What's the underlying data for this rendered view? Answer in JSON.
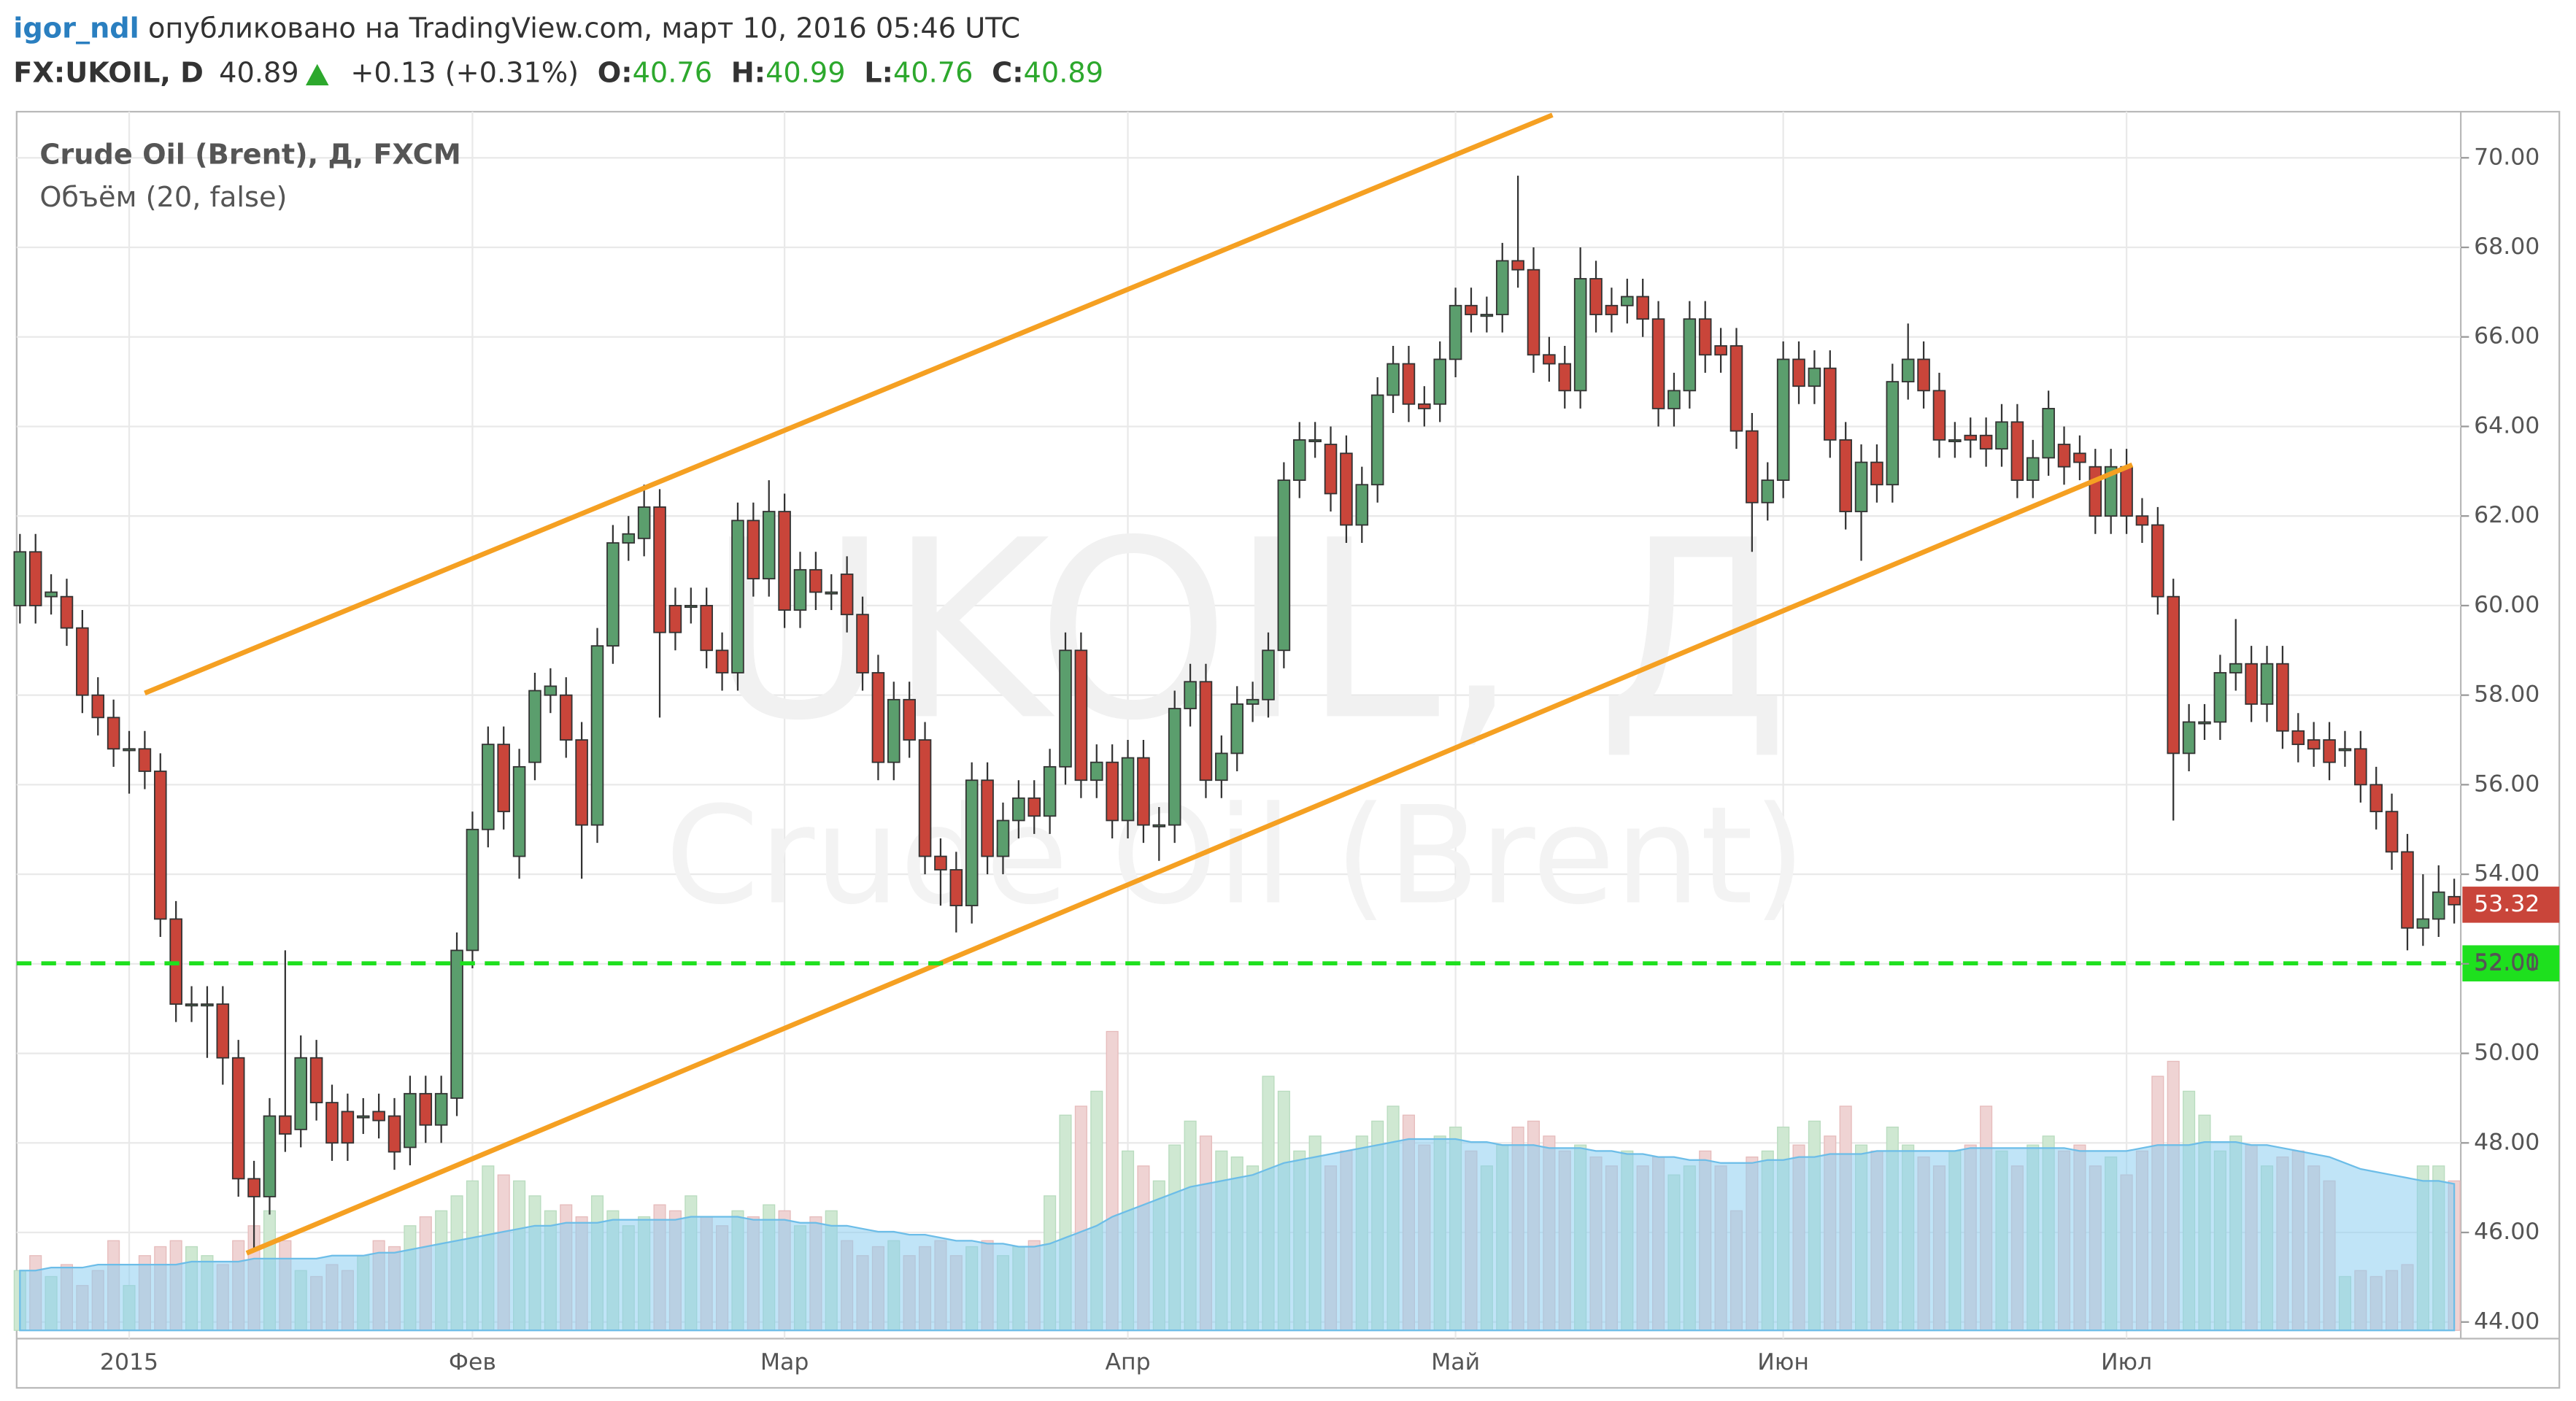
{
  "header": {
    "author": "igor_ndl",
    "published": "опубликовано на TradingView.com, март 10, 2016 05:46 UTC",
    "symbol": "FX:UKOIL, D",
    "last": 40.89,
    "change": "+0.13 (+0.31%)",
    "ohlc": [
      {
        "label": "O:",
        "value": 40.76
      },
      {
        "label": "H:",
        "value": 40.99
      },
      {
        "label": "L:",
        "value": 40.76
      },
      {
        "label": "C:",
        "value": 40.89
      }
    ]
  },
  "chart_data": {
    "type": "candlestick",
    "title": "Crude Oil (Brent), Д, FXCM",
    "indicator": "Объём (20, false)",
    "watermark": "UKOIL, Д",
    "watermark_sub": "Crude Oil (Brent)",
    "up_color": "#5b9e6d",
    "down_color": "#c9453a",
    "volume_up_color": "#cfe8d2",
    "volume_down_color": "#efd3d3",
    "volume_ma_color": "#8ccdf0",
    "categories": [
      null,
      null,
      null,
      null,
      null,
      null,
      null,
      "2015",
      null,
      null,
      null,
      null,
      null,
      null,
      null,
      null,
      null,
      null,
      null,
      null,
      null,
      null,
      null,
      null,
      null,
      null,
      null,
      null,
      null,
      "Фев",
      null,
      null,
      null,
      null,
      null,
      null,
      null,
      null,
      null,
      null,
      null,
      null,
      null,
      null,
      null,
      null,
      null,
      null,
      null,
      "Мар",
      null,
      null,
      null,
      null,
      null,
      null,
      null,
      null,
      null,
      null,
      null,
      null,
      null,
      null,
      null,
      null,
      null,
      null,
      null,
      null,
      null,
      "Апр",
      null,
      null,
      null,
      null,
      null,
      null,
      null,
      null,
      null,
      null,
      null,
      null,
      null,
      null,
      null,
      null,
      null,
      null,
      null,
      null,
      "Май",
      null,
      null,
      null,
      null,
      null,
      null,
      null,
      null,
      null,
      null,
      null,
      null,
      null,
      null,
      null,
      null,
      null,
      null,
      null,
      null,
      "Июн",
      null,
      null,
      null,
      null,
      null,
      null,
      null,
      null,
      null,
      null,
      null,
      null,
      null,
      null,
      null,
      null,
      null,
      null,
      null,
      null,
      null,
      "Июл",
      null,
      null,
      null,
      null,
      null,
      null,
      null,
      null,
      null,
      null,
      null,
      null,
      null,
      null,
      null,
      null,
      null,
      null,
      null,
      null,
      null
    ],
    "open": [
      60.0,
      61.2,
      60.2,
      60.2,
      59.5,
      58.0,
      57.5,
      56.8,
      56.8,
      56.3,
      53.0,
      51.1,
      51.1,
      51.1,
      49.9,
      47.2,
      46.8,
      48.6,
      48.3,
      49.9,
      48.9,
      48.7,
      48.6,
      48.7,
      48.6,
      47.9,
      49.1,
      48.4,
      49.0,
      52.3,
      55.0,
      56.9,
      54.4,
      56.5,
      58.0,
      58.0,
      57.0,
      55.1,
      59.1,
      61.4,
      61.5,
      62.2,
      60.0,
      60.0,
      60.0,
      59.0,
      58.5,
      61.9,
      60.6,
      62.1,
      59.9,
      60.8,
      60.3,
      60.7,
      59.8,
      58.5,
      56.5,
      57.9,
      57.0,
      54.4,
      54.1,
      53.3,
      56.1,
      54.4,
      55.2,
      55.7,
      55.3,
      56.4,
      59.0,
      56.1,
      56.5,
      55.2,
      56.6,
      55.1,
      55.1,
      57.7,
      58.3,
      56.1,
      56.7,
      57.8,
      57.9,
      59.0,
      62.8,
      63.7,
      63.6,
      63.4,
      61.8,
      62.7,
      64.7,
      65.4,
      64.5,
      64.5,
      65.5,
      66.7,
      66.5,
      66.5,
      67.7,
      67.5,
      65.6,
      65.4,
      64.8,
      67.3,
      66.7,
      66.7,
      66.9,
      66.4,
      64.4,
      64.8,
      66.4,
      65.8,
      65.8,
      63.9,
      62.3,
      62.8,
      65.5,
      64.9,
      65.3,
      63.7,
      62.1,
      63.2,
      62.7,
      65.0,
      65.5,
      64.8,
      63.7,
      63.8,
      63.8,
      63.5,
      64.1,
      62.8,
      63.3,
      63.6,
      63.4,
      63.1,
      62.0,
      63.1,
      62.0,
      61.8,
      60.2,
      56.7,
      57.4,
      57.4,
      58.5,
      58.7,
      57.8,
      58.7,
      57.2,
      57.0,
      57.0,
      56.8,
      56.8,
      56.0,
      55.4,
      54.5,
      52.8,
      53.0,
      53.5
    ],
    "high": [
      61.6,
      61.6,
      60.7,
      60.6,
      59.9,
      58.4,
      57.9,
      57.2,
      57.2,
      56.7,
      53.4,
      51.5,
      51.5,
      51.5,
      50.3,
      47.6,
      49.0,
      52.3,
      50.4,
      50.3,
      49.3,
      49.1,
      49.0,
      49.1,
      49.0,
      49.5,
      49.5,
      49.5,
      52.7,
      55.4,
      57.3,
      57.3,
      56.8,
      58.5,
      58.6,
      58.4,
      57.4,
      59.5,
      61.8,
      62.0,
      62.7,
      62.6,
      60.4,
      60.4,
      60.4,
      59.4,
      62.3,
      62.3,
      62.8,
      62.5,
      61.2,
      61.2,
      60.7,
      61.1,
      60.2,
      58.9,
      58.3,
      58.3,
      57.4,
      54.8,
      54.5,
      56.5,
      56.5,
      55.6,
      56.1,
      56.1,
      56.8,
      59.4,
      59.4,
      56.9,
      56.9,
      57.0,
      57.0,
      55.5,
      58.1,
      58.7,
      58.7,
      57.1,
      58.2,
      58.3,
      59.4,
      63.2,
      64.1,
      64.1,
      64.0,
      63.8,
      63.1,
      65.1,
      65.8,
      65.8,
      64.9,
      65.9,
      67.1,
      67.1,
      66.9,
      68.1,
      69.6,
      68.0,
      66.0,
      65.8,
      68.0,
      67.7,
      67.1,
      67.3,
      67.3,
      66.8,
      65.2,
      66.8,
      66.8,
      66.2,
      66.2,
      64.3,
      63.2,
      65.9,
      65.9,
      65.7,
      65.7,
      64.1,
      63.6,
      63.6,
      65.4,
      66.3,
      65.9,
      65.2,
      64.1,
      64.2,
      64.2,
      64.5,
      64.5,
      63.7,
      64.8,
      64.0,
      63.8,
      63.5,
      63.5,
      63.5,
      62.4,
      62.2,
      60.6,
      57.8,
      57.8,
      58.9,
      59.7,
      59.1,
      59.1,
      59.1,
      57.6,
      57.4,
      57.4,
      57.2,
      57.2,
      56.4,
      55.8,
      54.9,
      54.0,
      54.2,
      53.9
    ],
    "low": [
      59.6,
      59.6,
      59.8,
      59.1,
      57.6,
      57.1,
      56.4,
      55.8,
      55.9,
      52.6,
      50.7,
      50.7,
      49.9,
      49.3,
      46.8,
      45.6,
      46.4,
      47.8,
      47.9,
      48.5,
      47.6,
      47.6,
      48.2,
      48.1,
      47.4,
      47.5,
      48.0,
      48.0,
      48.6,
      51.9,
      54.6,
      55.0,
      53.9,
      56.1,
      57.6,
      56.6,
      53.9,
      54.7,
      58.7,
      61.0,
      61.1,
      57.5,
      59.0,
      59.6,
      58.6,
      58.1,
      58.1,
      60.2,
      60.2,
      59.5,
      59.5,
      59.9,
      59.9,
      59.4,
      58.1,
      56.1,
      56.1,
      56.6,
      54.0,
      53.3,
      52.7,
      52.9,
      54.0,
      54.0,
      54.8,
      54.9,
      54.9,
      56.0,
      55.7,
      55.7,
      54.8,
      54.8,
      54.7,
      54.3,
      54.7,
      57.3,
      55.7,
      55.7,
      56.3,
      57.4,
      57.5,
      58.6,
      62.4,
      63.3,
      62.1,
      61.4,
      61.4,
      62.3,
      64.3,
      64.1,
      64.0,
      64.1,
      65.1,
      66.1,
      66.1,
      66.1,
      67.1,
      65.2,
      65.0,
      64.4,
      64.4,
      66.1,
      66.1,
      66.3,
      66.0,
      64.0,
      64.0,
      64.4,
      65.2,
      65.2,
      63.5,
      61.2,
      61.9,
      62.4,
      64.5,
      64.5,
      63.3,
      61.7,
      61.0,
      62.3,
      62.3,
      64.6,
      64.4,
      63.3,
      63.3,
      63.3,
      63.1,
      63.1,
      62.4,
      62.4,
      62.9,
      62.7,
      62.8,
      61.6,
      61.6,
      61.6,
      61.4,
      59.8,
      55.2,
      56.3,
      57.0,
      57.0,
      58.1,
      57.4,
      57.4,
      56.8,
      56.5,
      56.4,
      56.1,
      56.4,
      55.6,
      55.0,
      54.1,
      52.3,
      52.4,
      52.6,
      52.9
    ],
    "close": [
      61.2,
      60.0,
      60.3,
      59.5,
      58.0,
      57.5,
      56.8,
      56.8,
      56.3,
      53.0,
      51.1,
      51.1,
      51.1,
      49.9,
      47.2,
      46.8,
      48.6,
      48.2,
      49.9,
      48.9,
      48.0,
      48.0,
      48.6,
      48.5,
      47.8,
      49.1,
      48.4,
      49.1,
      52.3,
      55.0,
      56.9,
      55.4,
      56.4,
      58.1,
      58.2,
      57.0,
      55.1,
      59.1,
      61.4,
      61.6,
      62.2,
      59.4,
      59.4,
      60.0,
      59.0,
      58.5,
      61.9,
      60.6,
      62.1,
      59.9,
      60.8,
      60.3,
      60.3,
      59.8,
      58.5,
      56.5,
      57.9,
      57.0,
      54.4,
      54.1,
      53.3,
      56.1,
      54.4,
      55.2,
      55.7,
      55.3,
      56.4,
      59.0,
      56.1,
      56.5,
      55.2,
      56.6,
      55.1,
      55.1,
      57.7,
      58.3,
      56.1,
      56.7,
      57.8,
      57.9,
      59.0,
      62.8,
      63.7,
      63.7,
      62.5,
      61.8,
      62.7,
      64.7,
      65.4,
      64.5,
      64.4,
      65.5,
      66.7,
      66.5,
      66.5,
      67.7,
      67.5,
      65.6,
      65.4,
      64.8,
      67.3,
      66.5,
      66.5,
      66.9,
      66.4,
      64.4,
      64.8,
      66.4,
      65.6,
      65.6,
      63.9,
      62.3,
      62.8,
      65.5,
      64.9,
      65.3,
      63.7,
      62.1,
      63.2,
      62.7,
      65.0,
      65.5,
      64.8,
      63.7,
      63.7,
      63.7,
      63.5,
      64.1,
      62.8,
      63.3,
      64.4,
      63.1,
      63.2,
      62.0,
      63.1,
      62.0,
      61.8,
      60.2,
      56.7,
      57.4,
      57.4,
      58.5,
      58.7,
      57.8,
      58.7,
      57.2,
      56.9,
      56.8,
      56.5,
      56.8,
      56.0,
      55.4,
      54.5,
      52.8,
      53.0,
      53.6,
      53.32
    ],
    "volume": [
      20,
      25,
      18,
      22,
      15,
      20,
      30,
      15,
      25,
      28,
      30,
      28,
      25,
      22,
      30,
      35,
      40,
      30,
      20,
      18,
      22,
      20,
      25,
      30,
      28,
      35,
      38,
      40,
      45,
      50,
      55,
      52,
      50,
      45,
      40,
      42,
      38,
      45,
      40,
      35,
      38,
      42,
      40,
      45,
      38,
      35,
      40,
      38,
      42,
      40,
      35,
      38,
      40,
      30,
      25,
      28,
      30,
      25,
      28,
      30,
      25,
      28,
      30,
      25,
      28,
      30,
      45,
      72,
      75,
      80,
      100,
      60,
      55,
      50,
      62,
      70,
      65,
      60,
      58,
      55,
      85,
      80,
      60,
      65,
      55,
      60,
      65,
      70,
      75,
      72,
      62,
      65,
      68,
      60,
      55,
      62,
      68,
      70,
      65,
      60,
      62,
      58,
      55,
      60,
      55,
      58,
      52,
      55,
      60,
      55,
      40,
      58,
      60,
      68,
      62,
      70,
      65,
      75,
      62,
      60,
      68,
      62,
      58,
      55,
      60,
      62,
      75,
      60,
      55,
      62,
      65,
      60,
      62,
      55,
      58,
      52,
      60,
      85,
      90,
      80,
      72,
      60,
      65,
      62,
      55,
      58,
      60,
      55,
      50,
      18,
      20,
      18,
      20,
      22,
      55,
      55,
      50
    ],
    "volume_ma": [
      20,
      20,
      21,
      21,
      21,
      22,
      22,
      22,
      22,
      22,
      22,
      23,
      23,
      23,
      23,
      24,
      24,
      24,
      24,
      24,
      25,
      25,
      25,
      26,
      26,
      27,
      28,
      29,
      30,
      31,
      32,
      33,
      34,
      35,
      35,
      36,
      36,
      36,
      37,
      37,
      37,
      37,
      37,
      38,
      38,
      38,
      38,
      37,
      37,
      37,
      36,
      36,
      35,
      35,
      34,
      33,
      33,
      32,
      32,
      31,
      30,
      30,
      29,
      29,
      28,
      28,
      29,
      31,
      33,
      35,
      38,
      40,
      42,
      44,
      46,
      48,
      49,
      50,
      51,
      52,
      54,
      56,
      57,
      58,
      59,
      60,
      61,
      62,
      63,
      64,
      64,
      64,
      64,
      63,
      63,
      62,
      62,
      62,
      61,
      61,
      61,
      60,
      60,
      59,
      59,
      58,
      58,
      57,
      57,
      56,
      56,
      56,
      57,
      57,
      58,
      58,
      59,
      59,
      59,
      60,
      60,
      60,
      60,
      60,
      60,
      61,
      61,
      61,
      61,
      61,
      61,
      61,
      60,
      60,
      60,
      60,
      61,
      62,
      62,
      62,
      63,
      63,
      63,
      62,
      62,
      61,
      60,
      59,
      58,
      56,
      54,
      53,
      52,
      51,
      50,
      50,
      49
    ],
    "hline": {
      "value": 52.01,
      "color": "#1ee01e"
    },
    "ylim": [
      43.63,
      71.03
    ],
    "yticks": [
      {
        "value": 44,
        "label": "44.00"
      },
      {
        "value": 46,
        "label": "46.00"
      },
      {
        "value": 48,
        "label": "48.00"
      },
      {
        "value": 50,
        "label": "50.00"
      },
      {
        "value": 52,
        "label": "52.00"
      },
      {
        "value": 54,
        "label": "54.00"
      },
      {
        "value": 56,
        "label": "56.00"
      },
      {
        "value": 58,
        "label": "58.00"
      },
      {
        "value": 60,
        "label": "60.00"
      },
      {
        "value": 62,
        "label": "62.00"
      },
      {
        "value": 64,
        "label": "64.00"
      },
      {
        "value": 66,
        "label": "66.00"
      },
      {
        "value": 68,
        "label": "68.00"
      },
      {
        "value": 70,
        "label": "70.00"
      }
    ],
    "grid": true
  }
}
